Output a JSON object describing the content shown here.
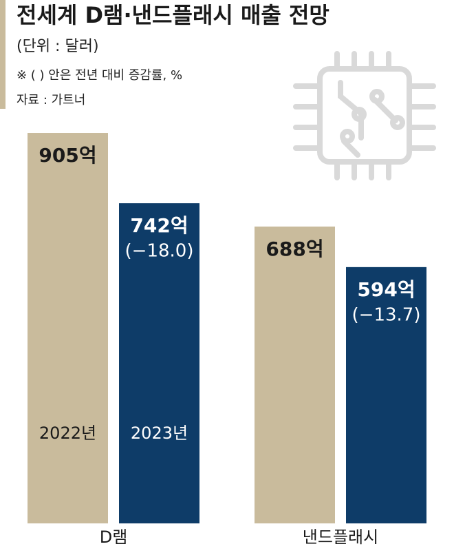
{
  "chart_data": {
    "type": "bar",
    "title": "전세계 D램·낸드플래시 매출 전망",
    "subtitle": "(단위 : 달러)",
    "note": "※ ( ) 안은 전년 대비 증감률, %",
    "source": "자료 : 가트너",
    "categories": [
      "D램",
      "낸드플래시"
    ],
    "series": [
      {
        "name": "2022년",
        "color": "#c9bb9c",
        "values": [
          905,
          688
        ],
        "value_labels": [
          "905억",
          "688억"
        ]
      },
      {
        "name": "2023년",
        "color": "#0e3c68",
        "values": [
          742,
          594
        ],
        "value_labels": [
          "742억",
          "594억"
        ],
        "change": [
          -18.0,
          -13.7
        ],
        "change_labels": [
          "(−18.0)",
          "(−13.7)"
        ]
      }
    ]
  }
}
